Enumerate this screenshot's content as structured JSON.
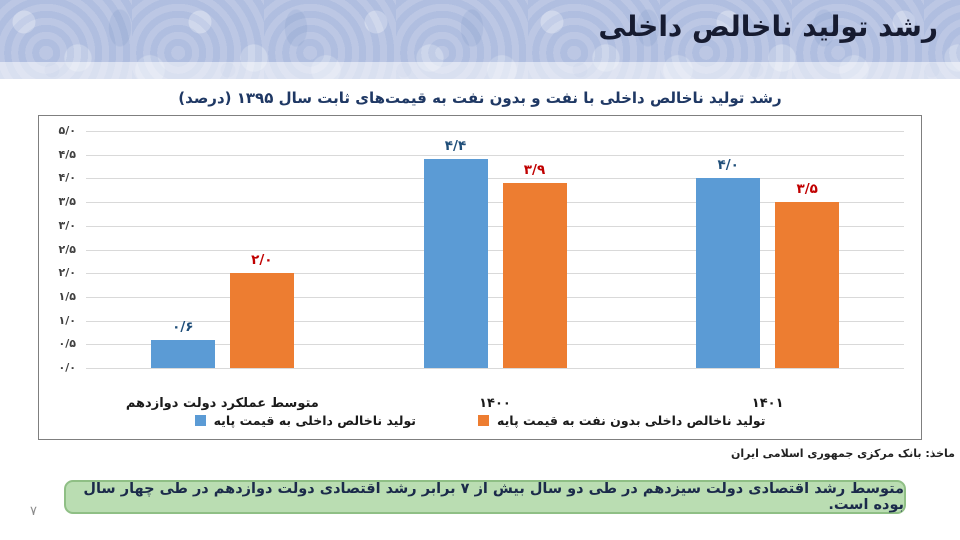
{
  "page": {
    "number": "۷"
  },
  "header": {
    "title": "رشد تولید ناخالص داخلی"
  },
  "chart": {
    "title": "رشد تولید ناخالص داخلی با نفت و بدون نفت به قیمت‌های ثابت سال ۱۳۹۵ (درصد)",
    "source": "ماخذ: بانک مرکزی جمهوری اسلامی ایران"
  },
  "chart_data": {
    "type": "bar",
    "title": "رشد تولید ناخالص داخلی با نفت و بدون نفت به قیمت‌های ثابت سال ۱۳۹۵ (درصد)",
    "categories": [
      "متوسط عملکرد دولت دوازدهم",
      "۱۴۰۰",
      "۱۴۰۱"
    ],
    "series": [
      {
        "name": "تولید ناخالص داخلی به قیمت پایه",
        "color": "#5B9BD5",
        "label_color": "#1F4E79",
        "values": [
          0.6,
          4.4,
          4.0
        ],
        "value_labels": [
          "۰/۶",
          "۴/۴",
          "۴/۰"
        ]
      },
      {
        "name": "تولید ناخالص داخلی بدون نفت به قیمت پایه",
        "color": "#ED7D31",
        "label_color": "#C00000",
        "values": [
          2.0,
          3.9,
          3.5
        ],
        "value_labels": [
          "۲/۰",
          "۳/۹",
          "۳/۵"
        ]
      }
    ],
    "ylim": [
      0,
      5
    ],
    "ytick_step": 0.5,
    "ytick_labels": [
      "۰/۰",
      "۰/۵",
      "۱/۰",
      "۱/۵",
      "۲/۰",
      "۲/۵",
      "۳/۰",
      "۳/۵",
      "۴/۰",
      "۴/۵",
      "۵/۰"
    ],
    "grid": true,
    "legend_position": "bottom"
  },
  "note": {
    "text": "متوسط رشد اقتصادی دولت سیزدهم در طی دو سال بیش از ۷ برابر رشد اقتصادی دولت دوازدهم در طی چهار سال بوده است.",
    "bg": "#BADDB2",
    "border": "#8FBF85"
  }
}
